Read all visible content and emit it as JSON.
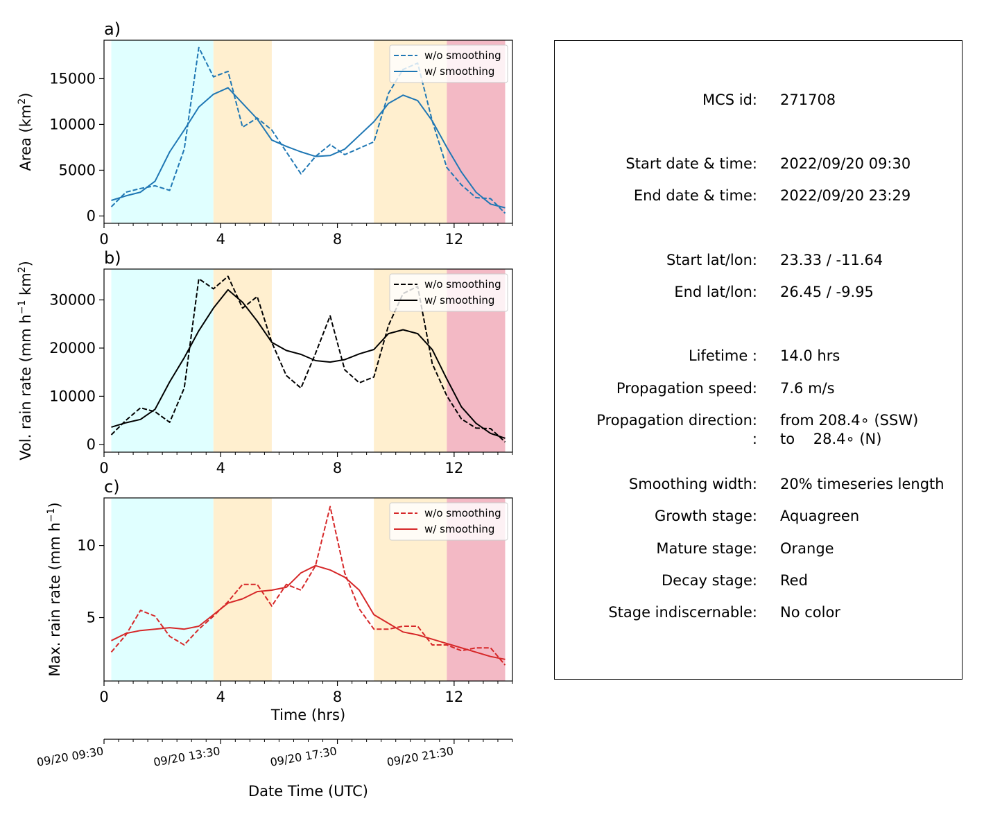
{
  "chart_data": [
    {
      "type": "line",
      "panel_label": "a)",
      "ylabel_html": "Area  (km<tspan baseline-shift=\"super\" font-size=\"14\">2</tspan>)",
      "xlim": [
        0,
        14
      ],
      "ylim": [
        -800,
        19200
      ],
      "xticks": [
        0,
        4,
        8,
        12
      ],
      "xticklabels": [
        "0",
        "4",
        "8",
        "12"
      ],
      "yticks": [
        0,
        5000,
        10000,
        15000
      ],
      "yticklabels": [
        "0",
        "5000",
        "10000",
        "15000"
      ],
      "color": "#1f77b4",
      "legend": [
        "w/o smoothing",
        "w/ smoothing"
      ],
      "legend_position": "top-right",
      "x": [
        0.25,
        0.75,
        1.25,
        1.75,
        2.25,
        2.75,
        3.25,
        3.75,
        4.25,
        4.75,
        5.25,
        5.75,
        6.25,
        6.75,
        7.25,
        7.75,
        8.25,
        8.75,
        9.25,
        9.75,
        10.25,
        10.75,
        11.25,
        11.75,
        12.25,
        12.75,
        13.25,
        13.75
      ],
      "series": [
        {
          "name": "w/o smoothing",
          "style": "dashed",
          "values": [
            1000,
            2600,
            3000,
            3300,
            2800,
            7300,
            18400,
            15200,
            15800,
            9700,
            10700,
            9400,
            7000,
            4600,
            6500,
            7800,
            6700,
            7400,
            8100,
            13400,
            16000,
            16700,
            10400,
            5300,
            3400,
            2000,
            1900,
            300
          ]
        },
        {
          "name": "w/ smoothing",
          "style": "solid",
          "values": [
            1700,
            2200,
            2600,
            3800,
            7000,
            9400,
            11900,
            13300,
            14000,
            12300,
            10600,
            8300,
            7600,
            7000,
            6500,
            6600,
            7300,
            8800,
            10300,
            12300,
            13200,
            12600,
            10400,
            7500,
            4800,
            2600,
            1300,
            900
          ]
        }
      ]
    },
    {
      "type": "line",
      "panel_label": "b)",
      "ylabel_html": "Vol. rain rate (mm h<tspan baseline-shift=\"super\" font-size=\"14\">−1</tspan> km<tspan baseline-shift=\"super\" font-size=\"14\">2</tspan>)",
      "xlim": [
        0,
        14
      ],
      "ylim": [
        -1600,
        36400
      ],
      "xticks": [
        0,
        4,
        8,
        12
      ],
      "xticklabels": [
        "0",
        "4",
        "8",
        "12"
      ],
      "yticks": [
        0,
        10000,
        20000,
        30000
      ],
      "yticklabels": [
        "0",
        "10000",
        "20000",
        "30000"
      ],
      "color": "#000000",
      "legend": [
        "w/o smoothing",
        "w/ smoothing"
      ],
      "legend_position": "top-right",
      "x": [
        0.25,
        0.75,
        1.25,
        1.75,
        2.25,
        2.75,
        3.25,
        3.75,
        4.25,
        4.75,
        5.25,
        5.75,
        6.25,
        6.75,
        7.25,
        7.75,
        8.25,
        8.75,
        9.25,
        9.75,
        10.25,
        10.75,
        11.25,
        11.75,
        12.25,
        12.75,
        13.25,
        13.75
      ],
      "series": [
        {
          "name": "w/o smoothing",
          "style": "dashed",
          "values": [
            2000,
            5000,
            7600,
            6800,
            4600,
            11700,
            34400,
            32300,
            34900,
            28300,
            30700,
            21200,
            14300,
            11700,
            18900,
            26700,
            15500,
            12800,
            14000,
            24700,
            31300,
            32800,
            16800,
            10100,
            5300,
            3400,
            3300,
            500
          ]
        },
        {
          "name": "w/ smoothing",
          "style": "solid",
          "values": [
            3600,
            4500,
            5200,
            7300,
            13000,
            18000,
            23600,
            28300,
            32100,
            29500,
            25600,
            21200,
            19500,
            18700,
            17400,
            17100,
            17600,
            18800,
            19700,
            23000,
            23800,
            23000,
            19700,
            13600,
            7800,
            4400,
            2300,
            1300
          ]
        }
      ]
    },
    {
      "type": "line",
      "panel_label": "c)",
      "ylabel_html": "Max. rain rate  (mm h<tspan baseline-shift=\"super\" font-size=\"14\">−1</tspan>)",
      "xlim": [
        0,
        14
      ],
      "ylim": [
        0.6,
        13.3
      ],
      "xticks": [
        0,
        4,
        8,
        12
      ],
      "xticklabels": [
        "0",
        "4",
        "8",
        "12"
      ],
      "yticks": [
        5,
        10
      ],
      "yticklabels": [
        "5",
        "10"
      ],
      "xlabel": "Time (hrs)",
      "color": "#d62728",
      "legend": [
        "w/o smoothing",
        "w/ smoothing"
      ],
      "legend_position": "top-right",
      "x": [
        0.25,
        0.75,
        1.25,
        1.75,
        2.25,
        2.75,
        3.25,
        3.75,
        4.25,
        4.75,
        5.25,
        5.75,
        6.25,
        6.75,
        7.25,
        7.75,
        8.25,
        8.75,
        9.25,
        9.75,
        10.25,
        10.75,
        11.25,
        11.75,
        12.25,
        12.75,
        13.25,
        13.75
      ],
      "series": [
        {
          "name": "w/o smoothing",
          "style": "dashed",
          "values": [
            2.6,
            3.8,
            5.5,
            5.1,
            3.7,
            3.1,
            4.2,
            5.1,
            6.1,
            7.3,
            7.3,
            5.8,
            7.3,
            6.9,
            8.6,
            12.7,
            8.1,
            5.6,
            4.2,
            4.2,
            4.4,
            4.4,
            3.1,
            3.1,
            2.7,
            2.9,
            2.9,
            1.7
          ]
        },
        {
          "name": "w/ smoothing",
          "style": "solid",
          "values": [
            3.4,
            3.9,
            4.1,
            4.2,
            4.3,
            4.2,
            4.4,
            5.2,
            6.0,
            6.3,
            6.8,
            6.9,
            7.1,
            8.1,
            8.6,
            8.3,
            7.8,
            6.9,
            5.2,
            4.6,
            4.0,
            3.8,
            3.5,
            3.2,
            2.9,
            2.6,
            2.3,
            2.1
          ]
        }
      ]
    }
  ],
  "stages": [
    {
      "name": "Growth",
      "from": 0.25,
      "to": 3.75,
      "color": "#e0ffff"
    },
    {
      "name": "Mature",
      "from": 3.75,
      "to": 5.75,
      "color": "#ffefcf"
    },
    {
      "name": "Mature",
      "from": 9.25,
      "to": 11.75,
      "color": "#ffefcf"
    },
    {
      "name": "Decay",
      "from": 11.75,
      "to": 13.75,
      "color": "#f3b9c5"
    }
  ],
  "datetime_axis": {
    "title": "Date Time (UTC)",
    "ticks": [
      {
        "hour": 0,
        "label": "09/20 09:30"
      },
      {
        "hour": 4,
        "label": "09/20 13:30"
      },
      {
        "hour": 8,
        "label": "09/20 17:30"
      },
      {
        "hour": 12,
        "label": "09/20 21:30"
      }
    ],
    "minor_step_hours": 0.5
  },
  "info": [
    {
      "key": "MCS id:",
      "value": "271708"
    },
    {
      "key": "Start date & time:",
      "value": "2022/09/20 09:30"
    },
    {
      "key": "End date & time:",
      "value": "2022/09/20 23:29"
    },
    {
      "key": "Start lat/lon:",
      "value": "23.33 / -11.64"
    },
    {
      "key": "End lat/lon:",
      "value": "26.45 / -9.95"
    },
    {
      "key": "Lifetime :",
      "value": "14.0 hrs"
    },
    {
      "key": "Propagation speed:",
      "value": "7.6 m/s"
    },
    {
      "key": "Propagation direction:",
      "value": "from 208.4∘ (SSW)"
    },
    {
      "key": ":",
      "value": "to    28.4∘ (N)"
    },
    {
      "key": "Smoothing width:",
      "value": "20% timeseries length"
    },
    {
      "key": "Growth stage:",
      "value": "Aquagreen"
    },
    {
      "key": "Mature stage:",
      "value": "Orange"
    },
    {
      "key": "Decay stage:",
      "value": "Red"
    },
    {
      "key": "Stage indiscernable:",
      "value": "No color"
    }
  ]
}
